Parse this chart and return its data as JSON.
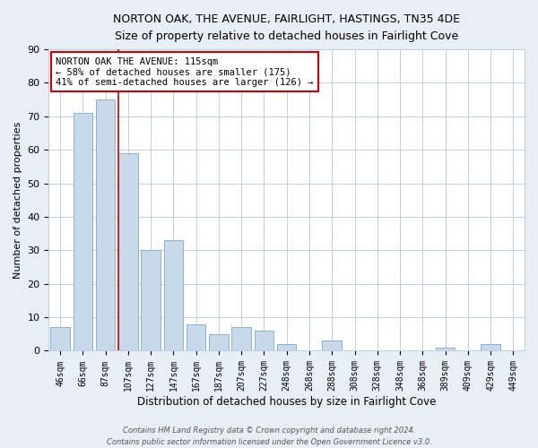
{
  "title": "NORTON OAK, THE AVENUE, FAIRLIGHT, HASTINGS, TN35 4DE",
  "subtitle": "Size of property relative to detached houses in Fairlight Cove",
  "xlabel": "Distribution of detached houses by size in Fairlight Cove",
  "ylabel": "Number of detached properties",
  "bar_labels": [
    "46sqm",
    "66sqm",
    "87sqm",
    "107sqm",
    "127sqm",
    "147sqm",
    "167sqm",
    "187sqm",
    "207sqm",
    "227sqm",
    "248sqm",
    "268sqm",
    "288sqm",
    "308sqm",
    "328sqm",
    "348sqm",
    "368sqm",
    "389sqm",
    "409sqm",
    "429sqm",
    "449sqm"
  ],
  "bar_values": [
    7,
    71,
    75,
    59,
    30,
    33,
    8,
    5,
    7,
    6,
    2,
    0,
    3,
    0,
    0,
    0,
    0,
    1,
    0,
    2,
    0
  ],
  "bar_color": "#c8d9ec",
  "bar_edge_color": "#8ab0d0",
  "property_line_index": 3,
  "property_line_color": "#cc0000",
  "ylim": [
    0,
    90
  ],
  "yticks": [
    0,
    10,
    20,
    30,
    40,
    50,
    60,
    70,
    80,
    90
  ],
  "annotation_title": "NORTON OAK THE AVENUE: 115sqm",
  "annotation_line1": "← 58% of detached houses are smaller (175)",
  "annotation_line2": "41% of semi-detached houses are larger (126) →",
  "annotation_box_color": "#ffffff",
  "annotation_box_edge_color": "#cc0000",
  "footer1": "Contains HM Land Registry data © Crown copyright and database right 2024.",
  "footer2": "Contains public sector information licensed under the Open Government Licence v3.0.",
  "background_color": "#e8eef5",
  "plot_background_color": "#ffffff",
  "grid_color": "#c0d0e0"
}
